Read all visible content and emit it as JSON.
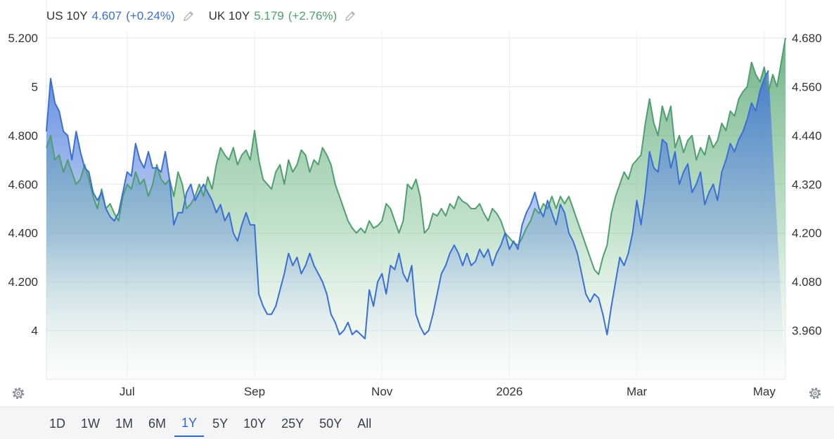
{
  "legend": {
    "us": {
      "name": "US 10Y",
      "value": "4.607",
      "change": "(+0.24%)",
      "color": "#3a6fd8"
    },
    "uk": {
      "name": "UK 10Y",
      "value": "5.179",
      "change": "(+2.76%)",
      "color": "#4f9f6e"
    }
  },
  "range_buttons": [
    {
      "label": "1D",
      "active": false
    },
    {
      "label": "1W",
      "active": false
    },
    {
      "label": "1M",
      "active": false
    },
    {
      "label": "6M",
      "active": false
    },
    {
      "label": "1Y",
      "active": true
    },
    {
      "label": "5Y",
      "active": false
    },
    {
      "label": "10Y",
      "active": false
    },
    {
      "label": "25Y",
      "active": false
    },
    {
      "label": "50Y",
      "active": false
    },
    {
      "label": "All",
      "active": false
    }
  ],
  "chart_data": {
    "type": "line",
    "title": "",
    "xlabel": "",
    "ylabel": "",
    "x_ticks": [
      "Jul",
      "Sep",
      "Nov",
      "2026",
      "Mar",
      "May"
    ],
    "x_tick_index": [
      19,
      49,
      79,
      109,
      139,
      169
    ],
    "left_axis": {
      "ticks": [
        "5.200",
        "5",
        "4.800",
        "4.600",
        "4.400",
        "4.200",
        "4"
      ],
      "tick_values": [
        5.2,
        5.0,
        4.8,
        4.6,
        4.4,
        4.2,
        4.0
      ],
      "range": [
        3.8,
        5.2
      ]
    },
    "right_axis": {
      "ticks": [
        "4.680",
        "4.560",
        "4.440",
        "4.320",
        "4.200",
        "4.080",
        "3.960"
      ],
      "tick_values": [
        4.68,
        4.56,
        4.44,
        4.32,
        4.2,
        4.08,
        3.96
      ],
      "range": [
        3.84,
        4.68
      ]
    },
    "grid": true,
    "series": [
      {
        "name": "UK 10Y",
        "axis": "left",
        "color": "#4f9f6e",
        "values": [
          4.75,
          4.8,
          4.7,
          4.72,
          4.65,
          4.7,
          4.65,
          4.6,
          4.62,
          4.68,
          4.62,
          4.55,
          4.5,
          4.58,
          4.5,
          4.52,
          4.48,
          4.45,
          4.55,
          4.6,
          4.58,
          4.65,
          4.6,
          4.62,
          4.55,
          4.6,
          4.68,
          4.62,
          4.6,
          4.62,
          4.55,
          4.65,
          4.6,
          4.5,
          4.52,
          4.55,
          4.6,
          4.55,
          4.63,
          4.58,
          4.68,
          4.75,
          4.72,
          4.7,
          4.75,
          4.68,
          4.72,
          4.74,
          4.7,
          4.82,
          4.7,
          4.62,
          4.6,
          4.58,
          4.65,
          4.68,
          4.6,
          4.7,
          4.65,
          4.68,
          4.74,
          4.72,
          4.65,
          4.7,
          4.68,
          4.75,
          4.72,
          4.68,
          4.6,
          4.55,
          4.5,
          4.45,
          4.42,
          4.4,
          4.42,
          4.4,
          4.45,
          4.42,
          4.43,
          4.45,
          4.52,
          4.5,
          4.45,
          4.4,
          4.45,
          4.6,
          4.58,
          4.62,
          4.55,
          4.4,
          4.42,
          4.48,
          4.47,
          4.5,
          4.47,
          4.52,
          4.5,
          4.55,
          4.53,
          4.52,
          4.5,
          4.5,
          4.52,
          4.48,
          4.45,
          4.5,
          4.48,
          4.45,
          4.4,
          4.38,
          4.36,
          4.35,
          4.38,
          4.42,
          4.45,
          4.5,
          4.48,
          4.52,
          4.5,
          4.55,
          4.5,
          4.55,
          4.52,
          4.55,
          4.5,
          4.45,
          4.4,
          4.35,
          4.3,
          4.25,
          4.23,
          4.3,
          4.35,
          4.48,
          4.55,
          4.6,
          4.65,
          4.62,
          4.68,
          4.7,
          4.72,
          4.85,
          4.95,
          4.85,
          4.8,
          4.92,
          4.86,
          4.92,
          4.75,
          4.8,
          4.73,
          4.78,
          4.8,
          4.7,
          4.75,
          4.72,
          4.8,
          4.75,
          4.78,
          4.85,
          4.82,
          4.9,
          4.88,
          4.95,
          4.98,
          5.0,
          5.1,
          5.05,
          5.02,
          5.08,
          4.98,
          5.05,
          5.0,
          5.1,
          5.2
        ]
      },
      {
        "name": "US 10Y",
        "axis": "right",
        "color": "#3a6fd8",
        "values": [
          4.45,
          4.58,
          4.52,
          4.5,
          4.45,
          4.44,
          4.38,
          4.45,
          4.4,
          4.36,
          4.35,
          4.3,
          4.28,
          4.3,
          4.26,
          4.24,
          4.23,
          4.25,
          4.3,
          4.35,
          4.34,
          4.42,
          4.38,
          4.36,
          4.4,
          4.36,
          4.36,
          4.35,
          4.4,
          4.33,
          4.22,
          4.25,
          4.25,
          4.3,
          4.32,
          4.28,
          4.3,
          4.32,
          4.3,
          4.28,
          4.25,
          4.27,
          4.23,
          4.25,
          4.2,
          4.18,
          4.22,
          4.25,
          4.22,
          4.22,
          4.05,
          4.02,
          4.0,
          4.0,
          4.02,
          4.06,
          4.1,
          4.15,
          4.12,
          4.14,
          4.1,
          4.12,
          4.15,
          4.12,
          4.1,
          4.08,
          4.05,
          4.0,
          3.98,
          3.95,
          3.96,
          3.98,
          3.95,
          3.96,
          3.95,
          3.94,
          4.06,
          4.02,
          4.08,
          4.1,
          4.05,
          4.12,
          4.11,
          4.15,
          4.1,
          4.08,
          4.12,
          4.0,
          3.97,
          3.95,
          3.96,
          4.0,
          4.05,
          4.1,
          4.12,
          4.15,
          4.17,
          4.15,
          4.12,
          4.15,
          4.12,
          4.13,
          4.16,
          4.14,
          4.16,
          4.12,
          4.15,
          4.17,
          4.2,
          4.16,
          4.18,
          4.16,
          4.22,
          4.25,
          4.27,
          4.3,
          4.26,
          4.24,
          4.28,
          4.25,
          4.22,
          4.27,
          4.25,
          4.2,
          4.18,
          4.15,
          4.1,
          4.05,
          4.03,
          4.05,
          4.04,
          4.0,
          3.95,
          4.02,
          4.08,
          4.14,
          4.12,
          4.15,
          4.2,
          4.28,
          4.22,
          4.3,
          4.4,
          4.36,
          4.35,
          4.43,
          4.42,
          4.36,
          4.4,
          4.32,
          4.35,
          4.37,
          4.3,
          4.32,
          4.35,
          4.27,
          4.3,
          4.32,
          4.28,
          4.35,
          4.38,
          4.42,
          4.4,
          4.43,
          4.45,
          4.48,
          4.52,
          4.5,
          4.55,
          4.58,
          4.6
        ]
      }
    ]
  }
}
